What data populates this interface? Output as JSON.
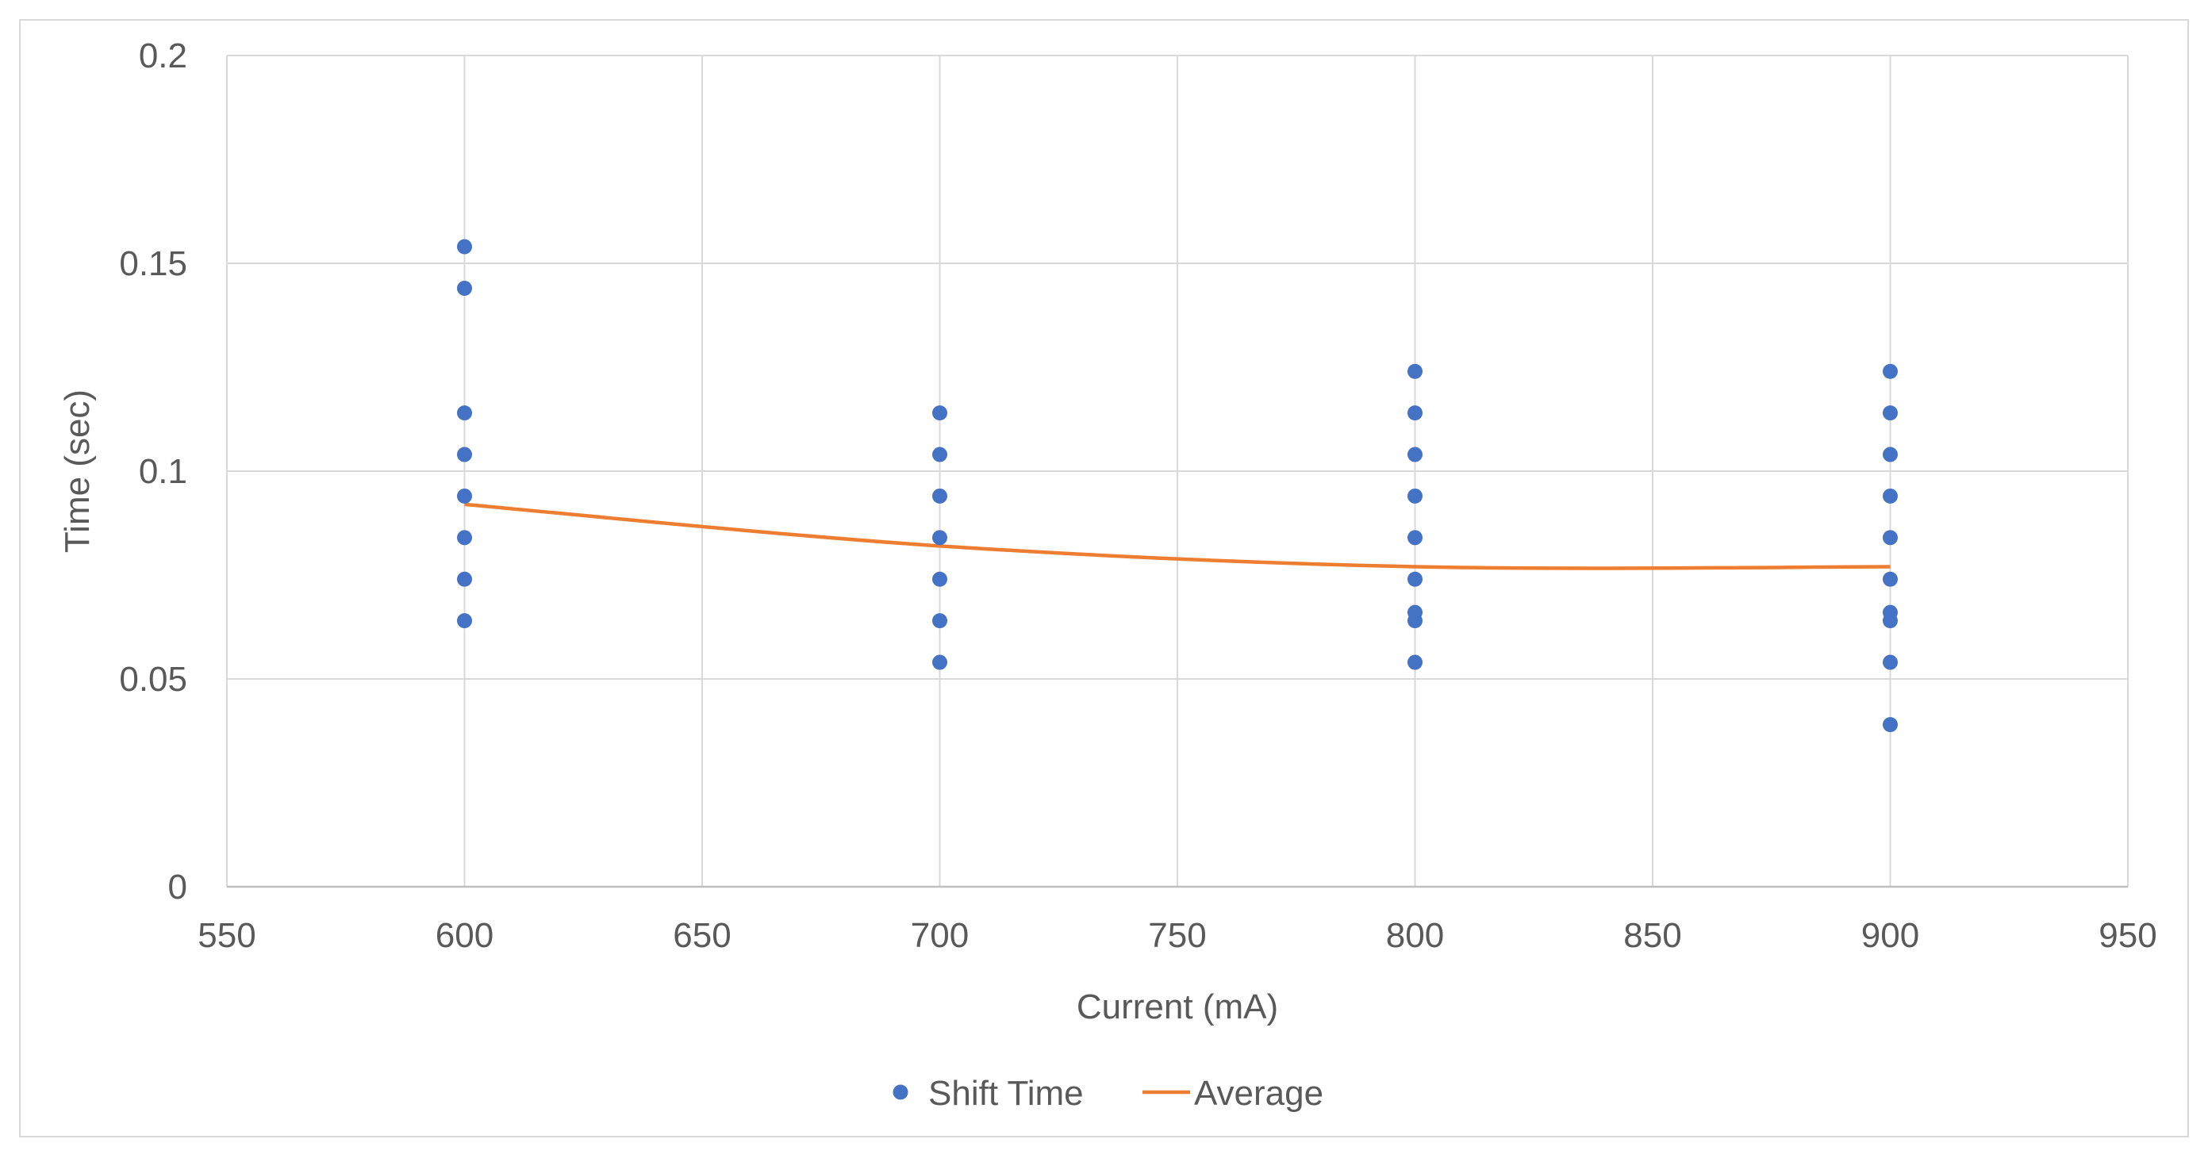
{
  "chart_data": {
    "type": "scatter",
    "title": "",
    "xlabel": "Current (mA)",
    "ylabel": "Time (sec)",
    "xlim": [
      550,
      950
    ],
    "ylim": [
      0,
      0.2
    ],
    "x_ticks": [
      550,
      600,
      650,
      700,
      750,
      800,
      850,
      900,
      950
    ],
    "x_tick_labels": [
      "550",
      "600",
      "650",
      "700",
      "750",
      "800",
      "850",
      "900",
      "950"
    ],
    "y_ticks": [
      0,
      0.05,
      0.1,
      0.15,
      0.2
    ],
    "y_tick_labels": [
      "0",
      "0.05",
      "0.1",
      "0.15",
      "0.2"
    ],
    "grid": true,
    "legend_position": "bottom",
    "series": [
      {
        "name": "Shift Time",
        "kind": "scatter",
        "color": "#4472c4",
        "points": [
          [
            600,
            0.154
          ],
          [
            600,
            0.144
          ],
          [
            600,
            0.114
          ],
          [
            600,
            0.104
          ],
          [
            600,
            0.094
          ],
          [
            600,
            0.084
          ],
          [
            600,
            0.074
          ],
          [
            600,
            0.064
          ],
          [
            700,
            0.114
          ],
          [
            700,
            0.104
          ],
          [
            700,
            0.094
          ],
          [
            700,
            0.084
          ],
          [
            700,
            0.074
          ],
          [
            700,
            0.064
          ],
          [
            700,
            0.054
          ],
          [
            800,
            0.124
          ],
          [
            800,
            0.114
          ],
          [
            800,
            0.104
          ],
          [
            800,
            0.094
          ],
          [
            800,
            0.084
          ],
          [
            800,
            0.074
          ],
          [
            800,
            0.066
          ],
          [
            800,
            0.064
          ],
          [
            800,
            0.054
          ],
          [
            900,
            0.124
          ],
          [
            900,
            0.114
          ],
          [
            900,
            0.104
          ],
          [
            900,
            0.094
          ],
          [
            900,
            0.084
          ],
          [
            900,
            0.074
          ],
          [
            900,
            0.066
          ],
          [
            900,
            0.064
          ],
          [
            900,
            0.054
          ],
          [
            900,
            0.039
          ]
        ]
      },
      {
        "name": "Average",
        "kind": "line",
        "smooth": true,
        "color": "#ed7d31",
        "points": [
          [
            600,
            0.092
          ],
          [
            700,
            0.082
          ],
          [
            800,
            0.077
          ],
          [
            900,
            0.077
          ]
        ]
      }
    ]
  }
}
